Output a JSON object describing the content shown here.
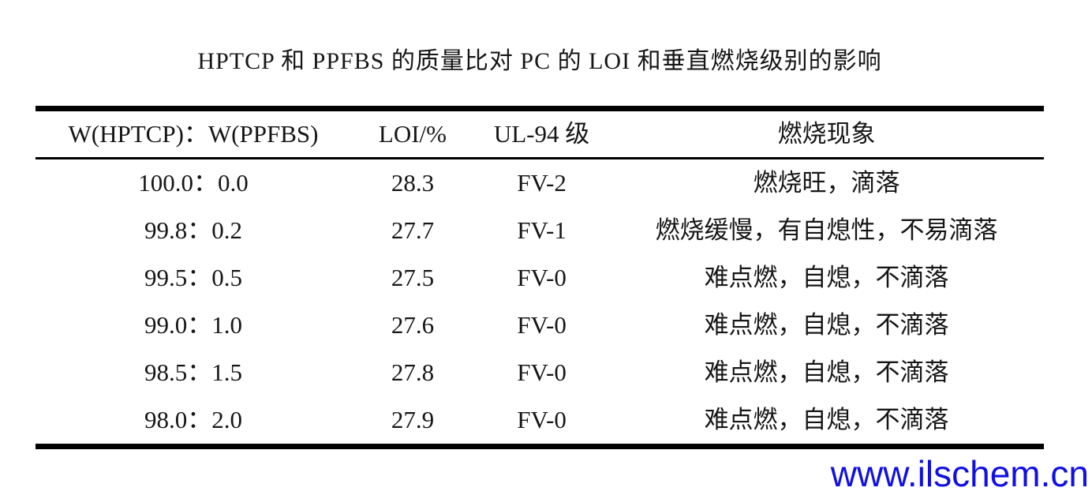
{
  "page": {
    "background": "#ffffff",
    "text_color": "#161616",
    "rule_color": "#000000"
  },
  "table": {
    "title": "HPTCP 和 PPFBS 的质量比对 PC 的 LOI 和垂直燃烧级别的影响",
    "columns": [
      "W(HPTCP)：W(PPFBS)",
      "LOI/%",
      "UL-94 级",
      "燃烧现象"
    ],
    "rows": [
      [
        "100.0：0.0",
        "28.3",
        "FV-2",
        "燃烧旺，滴落"
      ],
      [
        "99.8：0.2",
        "27.7",
        "FV-1",
        "燃烧缓慢，有自熄性，不易滴落"
      ],
      [
        "99.5：0.5",
        "27.5",
        "FV-0",
        "难点燃，自熄，不滴落"
      ],
      [
        "99.0：1.0",
        "27.6",
        "FV-0",
        "难点燃，自熄，不滴落"
      ],
      [
        "98.5：1.5",
        "27.8",
        "FV-0",
        "难点燃，自熄，不滴落"
      ],
      [
        "98.0：2.0",
        "27.9",
        "FV-0",
        "难点燃，自熄，不滴落"
      ]
    ]
  },
  "watermark": {
    "text": "www.ilschem.cn",
    "color": "#0f0fe6"
  }
}
